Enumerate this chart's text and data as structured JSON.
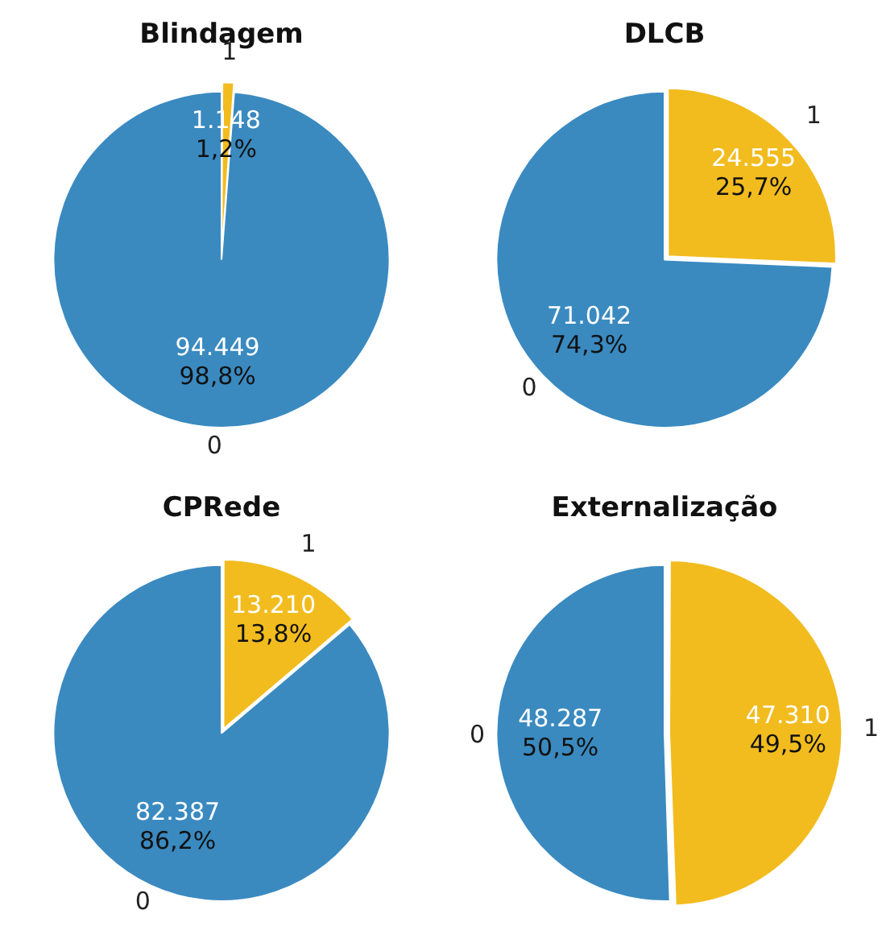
{
  "chart_data": [
    {
      "type": "pie",
      "title": "Blindagem",
      "categories": [
        "1",
        "0"
      ],
      "values": [
        1148,
        94449
      ],
      "colors": [
        "#f2bc1f",
        "#3a8ac0"
      ],
      "value_labels": [
        "1.148\n1,2%",
        "94.449\n98,8%"
      ],
      "legend": false
    },
    {
      "type": "pie",
      "title": "DLCB",
      "categories": [
        "1",
        "0"
      ],
      "values": [
        24555,
        71042
      ],
      "colors": [
        "#f2bc1f",
        "#3a8ac0"
      ],
      "value_labels": [
        "24.555\n25,7%",
        "71.042\n74,3%"
      ],
      "legend": false
    },
    {
      "type": "pie",
      "title": "CPRede",
      "categories": [
        "1",
        "0"
      ],
      "values": [
        13210,
        82387
      ],
      "colors": [
        "#f2bc1f",
        "#3a8ac0"
      ],
      "value_labels": [
        "13.210\n13,8%",
        "82.387\n86,2%"
      ],
      "legend": false
    },
    {
      "type": "pie",
      "title": "Externalização",
      "categories": [
        "1",
        "0"
      ],
      "values": [
        47310,
        48287
      ],
      "colors": [
        "#f2bc1f",
        "#3a8ac0"
      ],
      "value_labels": [
        "47.310\n49,5%",
        "48.287\n50,5%"
      ],
      "legend": false
    }
  ]
}
